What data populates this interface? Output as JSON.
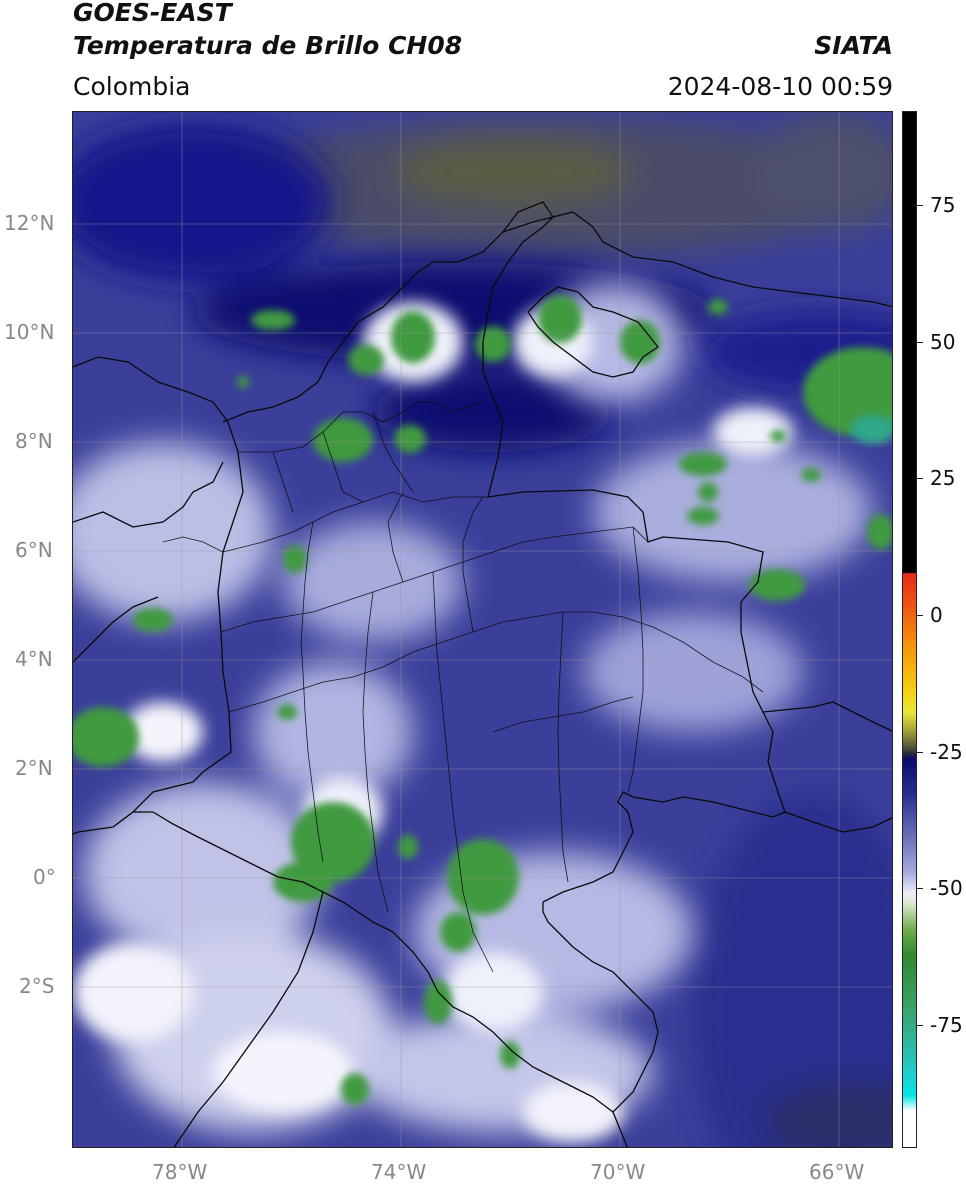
{
  "header": {
    "source": "GOES-EAST",
    "product": "Temperatura de Brillo CH08",
    "region": "Colombia",
    "agency": "SIATA",
    "datetime": "2024-08-10 00:59"
  },
  "map": {
    "lon_range": [
      -80,
      -65
    ],
    "lat_range": [
      -5,
      14
    ],
    "lat_ticks": [
      {
        "value": 12,
        "label": "12°N"
      },
      {
        "value": 10,
        "label": "10°N"
      },
      {
        "value": 8,
        "label": "8°N"
      },
      {
        "value": 6,
        "label": "6°N"
      },
      {
        "value": 4,
        "label": "4°N"
      },
      {
        "value": 2,
        "label": "2°N"
      },
      {
        "value": 0,
        "label": "0°"
      },
      {
        "value": -2,
        "label": "2°S"
      }
    ],
    "lon_ticks": [
      {
        "value": -78,
        "label": "78°W"
      },
      {
        "value": -74,
        "label": "74°W"
      },
      {
        "value": -70,
        "label": "70°W"
      },
      {
        "value": -66,
        "label": "66°W"
      }
    ],
    "gridlines": true,
    "colors": {
      "background": "#3b3f9a",
      "deep": "#0d1070",
      "light": "#b9bde6",
      "cloud": "#f2f3fb",
      "green": "#3f9a3f",
      "olive": "#5e6235"
    }
  },
  "colorbar": {
    "range": [
      -100,
      90
    ],
    "ticks": [
      {
        "value": 75,
        "label": "75"
      },
      {
        "value": 50,
        "label": "50"
      },
      {
        "value": 25,
        "label": "25"
      },
      {
        "value": 0,
        "label": "0"
      },
      {
        "value": -25,
        "label": "-25"
      },
      {
        "value": -50,
        "label": "-50"
      },
      {
        "value": -75,
        "label": "-75"
      }
    ]
  }
}
